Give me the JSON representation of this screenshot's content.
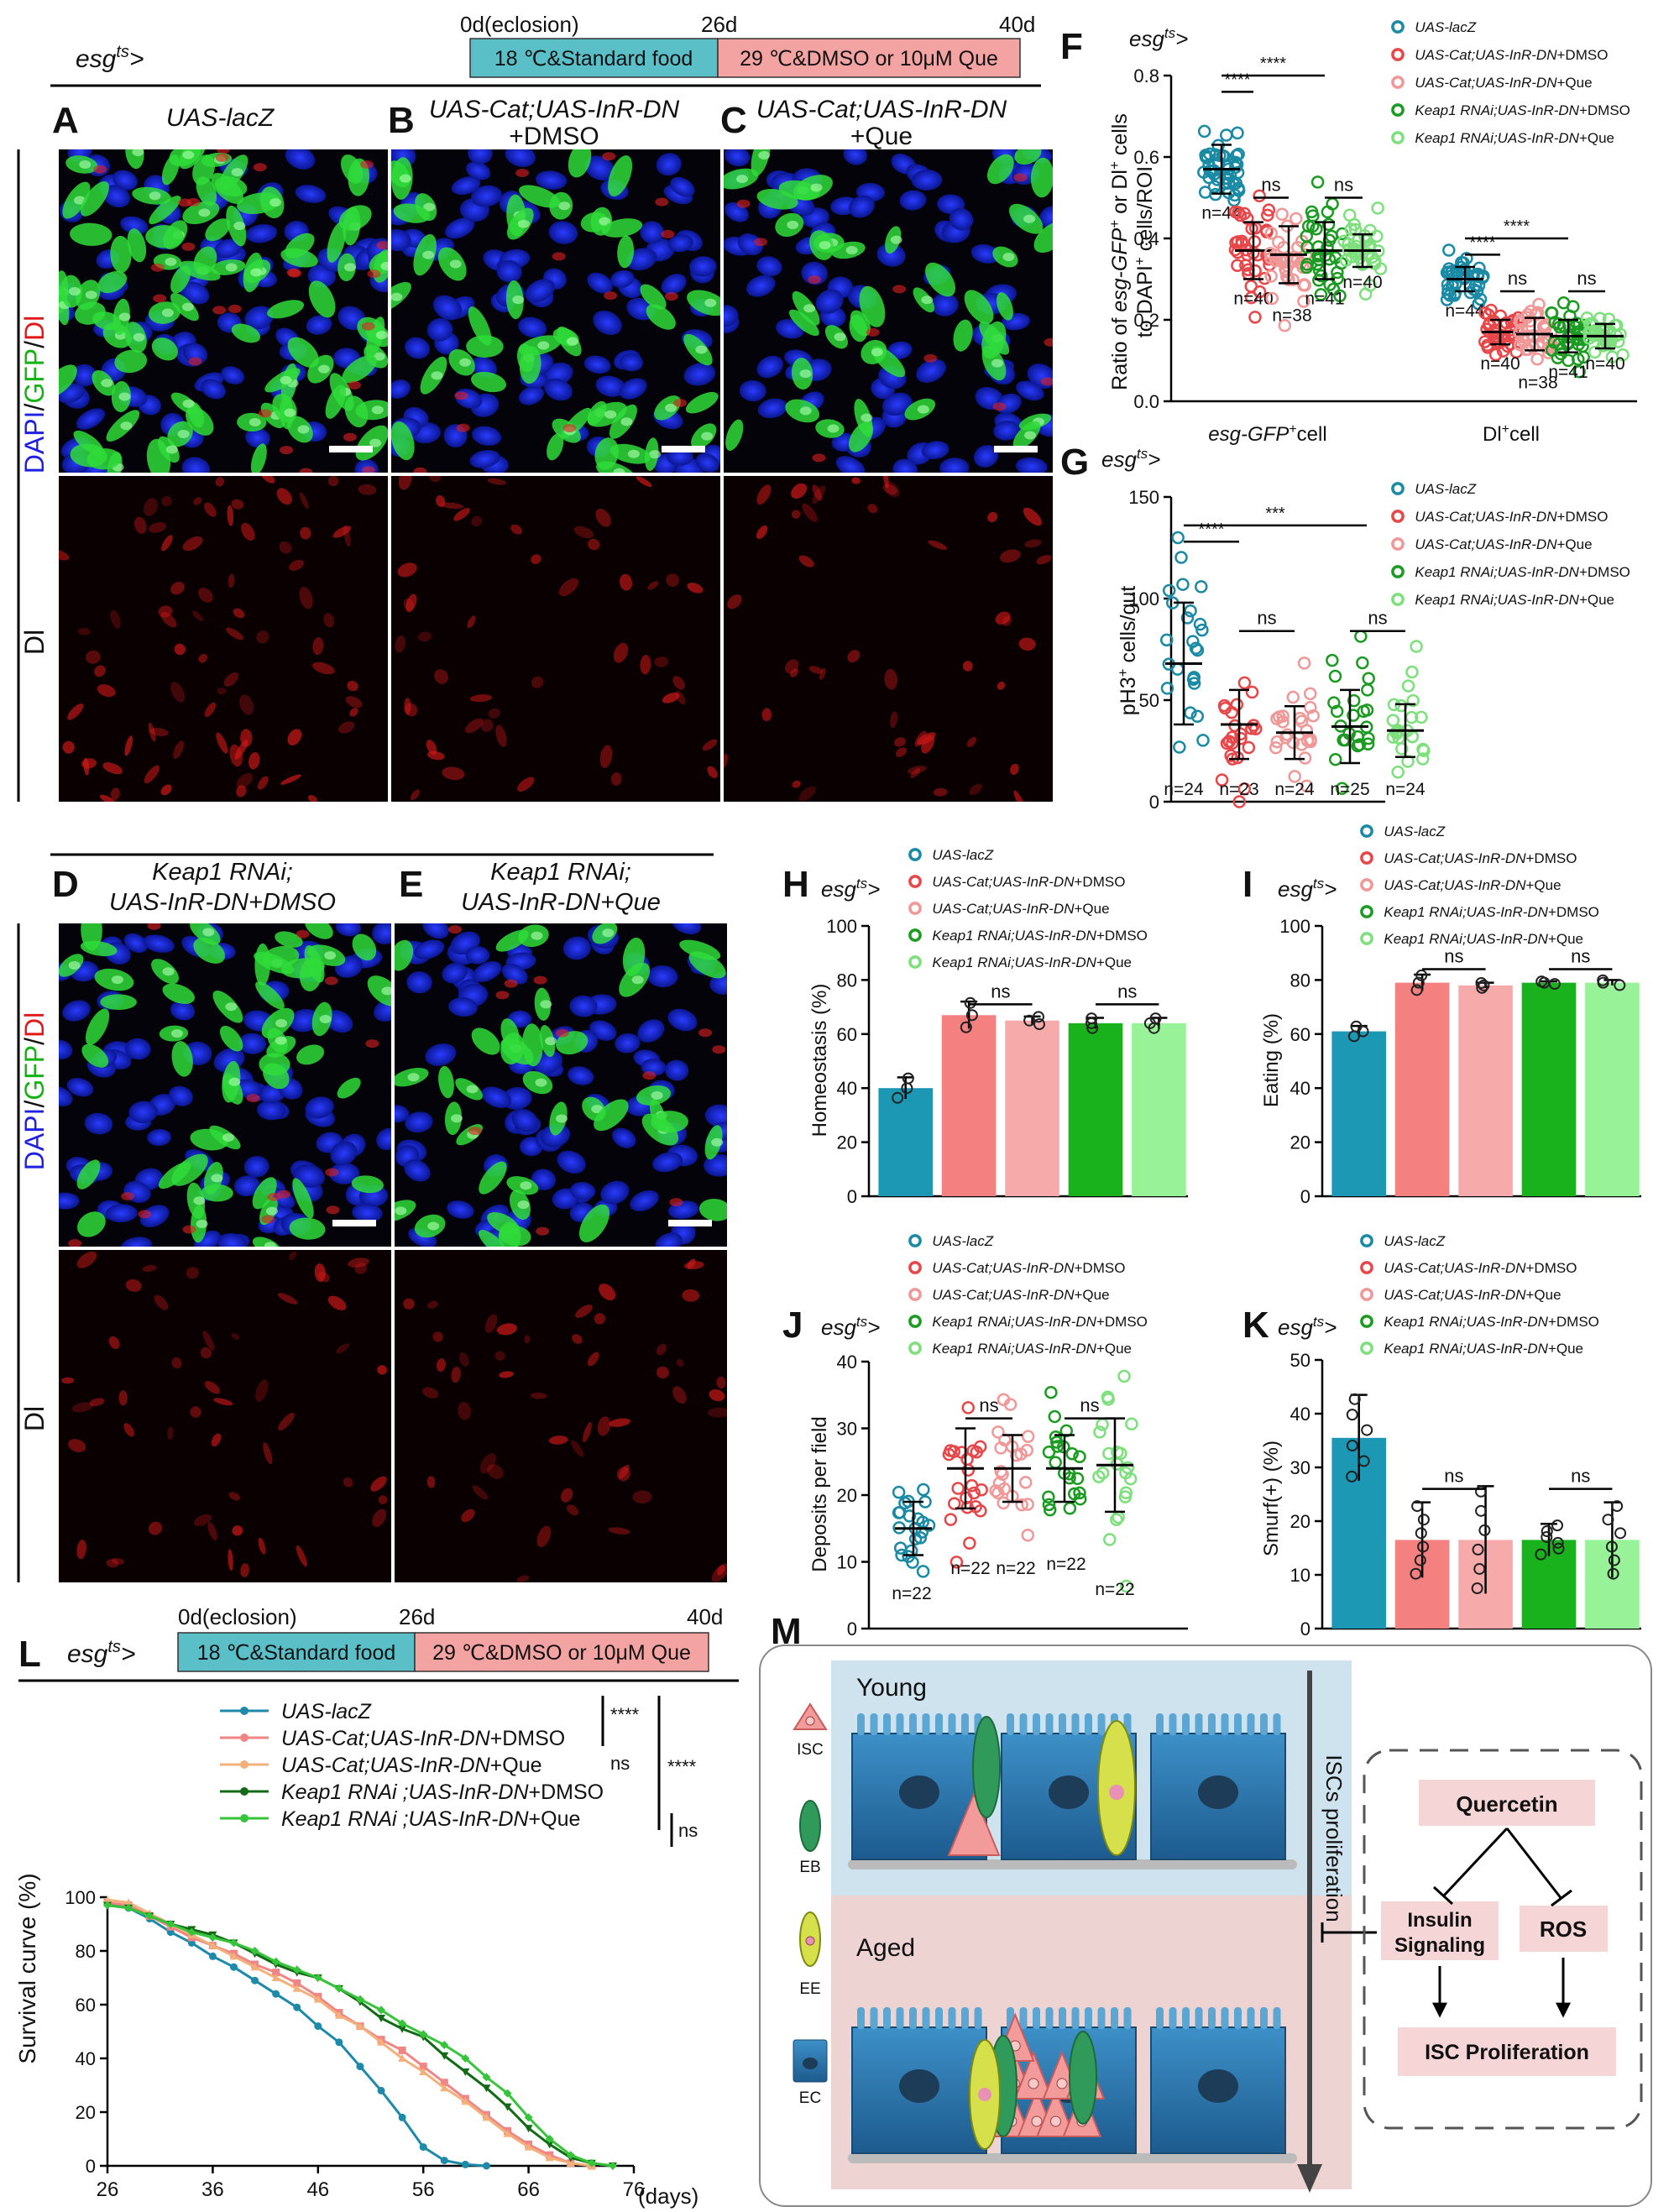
{
  "driver": "esg",
  "driver_sup": "ts",
  "driver_suffix": ">",
  "timeline": {
    "t0": "0d(eclosion)",
    "t1": "26d",
    "t2": "40d",
    "phase1": "18 ℃&Standard food",
    "phase2": "29 ℃&DMSO or 10μM Que",
    "phase1_color": "#5bbfc8",
    "phase2_color": "#f4a3a3"
  },
  "panel_letters": [
    "A",
    "B",
    "C",
    "D",
    "E",
    "F",
    "G",
    "H",
    "I",
    "J",
    "K",
    "L",
    "M"
  ],
  "image_panels": {
    "A_title": "UAS-lacZ",
    "B_title": "UAS-Cat;UAS-InR-DN",
    "B_sub": "+DMSO",
    "C_title": "UAS-Cat;UAS-InR-DN",
    "C_sub": "+Que",
    "D_title1": "Keap1 RNAi;",
    "D_title2": "UAS-InR-DN+DMSO",
    "E_title1": "Keap1 RNAi;",
    "E_title2": "UAS-InR-DN+Que",
    "stain_dapi": "DAPI",
    "stain_gfp": "GFP",
    "stain_dl": "Dl",
    "sep": "/"
  },
  "groups": [
    {
      "name": "UAS-lacZ",
      "suffix": "",
      "color": "#1a8aa5",
      "light": "#8fd0dd"
    },
    {
      "name": "UAS-Cat;UAS-InR-DN",
      "suffix": "+DMSO",
      "color": "#e8474a",
      "light": "#f4a6a6"
    },
    {
      "name": "UAS-Cat;UAS-InR-DN",
      "suffix": "+Que",
      "color": "#f09898",
      "light": "#f8c6c6"
    },
    {
      "name": "Keap1 RNAi;UAS-InR-DN",
      "suffix": "+DMSO",
      "color": "#1c9b22",
      "light": "#7fcf7e"
    },
    {
      "name": "Keap1 RNAi;UAS-InR-DN",
      "suffix": "+Que",
      "color": "#7ee07d",
      "light": "#bff0be"
    }
  ],
  "chart_data": [
    {
      "panel": "F",
      "type": "scatter",
      "ylabel_line1": "Ratio of esg-GFP+ or Dl+ cells",
      "ylabel_a": "Ratio of ",
      "ylabel_b": "esg-GFP",
      "ylabel_c": "+",
      "ylabel_d": " or Dl",
      "ylabel_e": "+",
      "ylabel_f": " cells",
      "ylabel_line2a": "to DAPI",
      "ylabel_line2b": "+",
      "ylabel_line2c": " cells/ROI",
      "ylim": [
        0,
        0.8
      ],
      "yticks": [
        "0.0",
        "0.2",
        "0.4",
        "0.6",
        "0.8"
      ],
      "categories": [
        {
          "label_a": "esg-GFP",
          "label_b": "+",
          "label_c": "cell",
          "means": [
            0.57,
            0.37,
            0.36,
            0.37,
            0.37
          ],
          "sds": [
            0.06,
            0.07,
            0.07,
            0.07,
            0.04
          ],
          "n": [
            "n=44",
            "n=40",
            "n=38",
            "n=41",
            "n=40"
          ]
        },
        {
          "label_a": "Dl",
          "label_b": "+",
          "label_c": "cell",
          "means": [
            0.3,
            0.17,
            0.165,
            0.16,
            0.16
          ],
          "sds": [
            0.03,
            0.03,
            0.04,
            0.04,
            0.03
          ],
          "n": [
            "n=44",
            "n=40",
            "n=38",
            "n=41",
            "n=40"
          ]
        }
      ],
      "sig": [
        "****",
        "****",
        "ns",
        "ns",
        "****",
        "****",
        "ns",
        "ns"
      ]
    },
    {
      "panel": "G",
      "type": "scatter",
      "ylabel": "pH3",
      "ylabel_sup": "+",
      "ylabel_rest": " cells/gut",
      "ylim": [
        0,
        150
      ],
      "yticks": [
        "0",
        "50",
        "100",
        "150"
      ],
      "means": [
        68,
        38,
        34,
        37,
        35
      ],
      "sds": [
        30,
        17,
        13,
        18,
        13
      ],
      "n": [
        "n=24",
        "n=23",
        "n=24",
        "n=25",
        "n=24"
      ],
      "sig": [
        "****",
        "***",
        "ns",
        "ns"
      ]
    },
    {
      "panel": "H",
      "type": "bar",
      "ylabel": "Homeostasis (%)",
      "ylim": [
        0,
        100
      ],
      "yticks": [
        "0",
        "20",
        "40",
        "60",
        "80",
        "100"
      ],
      "values": [
        40,
        67,
        65,
        64,
        64
      ],
      "sds": [
        4,
        5,
        1.5,
        2,
        2
      ],
      "sig": [
        "ns",
        "ns"
      ]
    },
    {
      "panel": "I",
      "type": "bar",
      "ylabel": "Eating (%)",
      "ylim": [
        0,
        100
      ],
      "yticks": [
        "0",
        "20",
        "40",
        "60",
        "80",
        "100"
      ],
      "values": [
        61,
        79,
        78,
        79,
        79
      ],
      "sds": [
        2,
        3,
        1,
        0.5,
        1
      ],
      "sig": [
        "ns",
        "ns"
      ]
    },
    {
      "panel": "J",
      "type": "scatter",
      "ylabel": "Deposits per field",
      "ylim": [
        0,
        40
      ],
      "yticks": [
        "0",
        "10",
        "20",
        "30",
        "40"
      ],
      "means": [
        15,
        24,
        24,
        24,
        24.5
      ],
      "sds": [
        4,
        6,
        5,
        5,
        7
      ],
      "n": [
        "n=22",
        "n=22",
        "n=22",
        "n=22",
        "n=22"
      ],
      "sig": [
        "ns",
        "ns"
      ]
    },
    {
      "panel": "K",
      "type": "bar",
      "ylabel": "Smurf(+) (%)",
      "ylim": [
        0,
        50
      ],
      "yticks": [
        "0",
        "10",
        "20",
        "30",
        "40",
        "50"
      ],
      "values": [
        35.5,
        16.5,
        16.5,
        16.5,
        16.5
      ],
      "sds": [
        8,
        7,
        10,
        3,
        7
      ],
      "sig": [
        "ns",
        "ns"
      ]
    },
    {
      "panel": "L",
      "type": "line",
      "ylabel": "Survival curve (%)",
      "xunit": "(days)",
      "xlim": [
        26,
        76
      ],
      "ylim": [
        0,
        100
      ],
      "xticks": [
        "26",
        "36",
        "46",
        "56",
        "66",
        "76"
      ],
      "yticks": [
        "0",
        "20",
        "40",
        "60",
        "80",
        "100"
      ],
      "series": [
        {
          "name": "UAS-lacZ",
          "suffix": "",
          "marker": "circle",
          "x": [
            26,
            28,
            30,
            32,
            34,
            36,
            38,
            40,
            42,
            44,
            46,
            48,
            50,
            52,
            54,
            56,
            58,
            60,
            62
          ],
          "y": [
            98,
            96,
            92,
            87,
            83,
            78,
            74,
            69,
            64,
            59,
            52,
            46,
            37,
            28,
            18,
            7,
            2,
            0.5,
            0
          ]
        },
        {
          "name": "UAS-Cat;UAS-InR-DN",
          "suffix": "+DMSO",
          "marker": "square",
          "x": [
            26,
            28,
            30,
            32,
            34,
            36,
            38,
            40,
            42,
            44,
            46,
            48,
            50,
            52,
            54,
            56,
            58,
            60,
            62,
            64,
            66,
            68,
            70,
            72
          ],
          "y": [
            98,
            97,
            93,
            89,
            85,
            82,
            79,
            75,
            72,
            68,
            63,
            57,
            52,
            47,
            43,
            37,
            31,
            25,
            19,
            13,
            8,
            4,
            1,
            0
          ]
        },
        {
          "name": "UAS-Cat;UAS-InR-DN",
          "suffix": "+Que",
          "marker": "triangle",
          "x": [
            26,
            28,
            30,
            32,
            34,
            36,
            38,
            40,
            42,
            44,
            46,
            48,
            50,
            52,
            54,
            56,
            58,
            60,
            62,
            64,
            66,
            68,
            70,
            72
          ],
          "y": [
            99,
            98,
            94,
            90,
            86,
            82,
            78,
            74,
            70,
            66,
            62,
            56,
            52,
            46,
            40,
            35,
            29,
            24,
            18,
            12,
            7,
            3,
            1,
            0
          ]
        },
        {
          "name": "Keap1 RNAi ;UAS-InR-DN",
          "suffix": "+DMSO",
          "marker": "triangle-down",
          "x": [
            26,
            28,
            30,
            32,
            34,
            36,
            38,
            40,
            42,
            44,
            46,
            48,
            50,
            52,
            54,
            56,
            58,
            60,
            62,
            64,
            66,
            68,
            70,
            72,
            74
          ],
          "y": [
            97,
            96,
            93,
            90,
            88,
            86,
            83,
            79,
            75,
            72,
            70,
            66,
            61,
            55,
            51,
            48,
            41,
            35,
            29,
            22,
            14,
            8,
            3,
            1,
            0
          ]
        },
        {
          "name": "Keap1 RNAi ;UAS-InR-DN",
          "suffix": "+Que",
          "marker": "diamond",
          "x": [
            26,
            28,
            30,
            32,
            34,
            36,
            38,
            40,
            42,
            44,
            46,
            48,
            50,
            52,
            54,
            56,
            58,
            60,
            62,
            64,
            66,
            68,
            70,
            72,
            74
          ],
          "y": [
            97,
            96,
            93,
            90,
            87,
            85,
            83,
            80,
            76,
            73,
            70,
            66,
            62,
            58,
            53,
            49,
            45,
            40,
            33,
            27,
            18,
            10,
            4,
            1,
            0
          ]
        }
      ],
      "sig": [
        "****",
        "****",
        "ns",
        "ns"
      ]
    }
  ],
  "model": {
    "young": "Young",
    "aged": "Aged",
    "isc": "ISC",
    "eb": "EB",
    "ee": "EE",
    "ec": "EC",
    "arrow_label": "ISCs proliferation",
    "quercetin": "Quercetin",
    "insulin1": "Insulin",
    "insulin2": "Signaling",
    "ros": "ROS",
    "isc_prolif": "ISC Proliferation"
  }
}
